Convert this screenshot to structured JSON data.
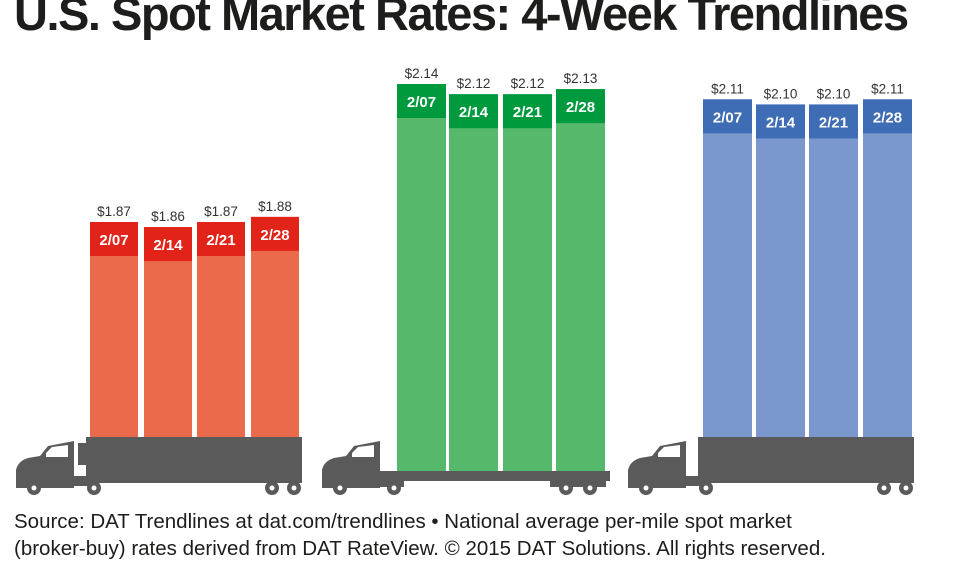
{
  "title": "U.S. Spot Market Rates: 4-Week Trendlines",
  "source_lines": [
    "Source: DAT Trendlines at dat.com/trendlines • National average per-mile spot market",
    "(broker-buy) rates derived from DAT RateView. © 2015 DAT Solutions. All rights reserved."
  ],
  "colors": {
    "truck": "#5a5a5a",
    "reefer_label": "#e2231a",
    "reefer_bar": "#ec6a4c",
    "van_label": "#009a3e",
    "van_bar": "#55b86a",
    "flatbed_label": "#3e6cb5",
    "flatbed_bar": "#7b98ce"
  },
  "chart_data": [
    {
      "type": "bar",
      "truck_style": "reefer",
      "categories": [
        "2/07",
        "2/14",
        "2/21",
        "2/28"
      ],
      "values": [
        1.87,
        1.86,
        1.87,
        1.88
      ],
      "value_labels": [
        "$1.87",
        "$1.86",
        "$1.87",
        "$1.88"
      ],
      "bar_color": "#ec6a4c",
      "label_color": "#e2231a"
    },
    {
      "type": "bar",
      "truck_style": "flatbed",
      "categories": [
        "2/07",
        "2/14",
        "2/21",
        "2/28"
      ],
      "values": [
        2.14,
        2.12,
        2.12,
        2.13
      ],
      "value_labels": [
        "$2.14",
        "$2.12",
        "$2.12",
        "$2.13"
      ],
      "bar_color": "#55b86a",
      "label_color": "#009a3e"
    },
    {
      "type": "bar",
      "truck_style": "van",
      "categories": [
        "2/07",
        "2/14",
        "2/21",
        "2/28"
      ],
      "values": [
        2.11,
        2.1,
        2.1,
        2.11
      ],
      "value_labels": [
        "$2.11",
        "$2.10",
        "$2.10",
        "$2.11"
      ],
      "bar_color": "#7b98ce",
      "label_color": "#3e6cb5"
    }
  ]
}
